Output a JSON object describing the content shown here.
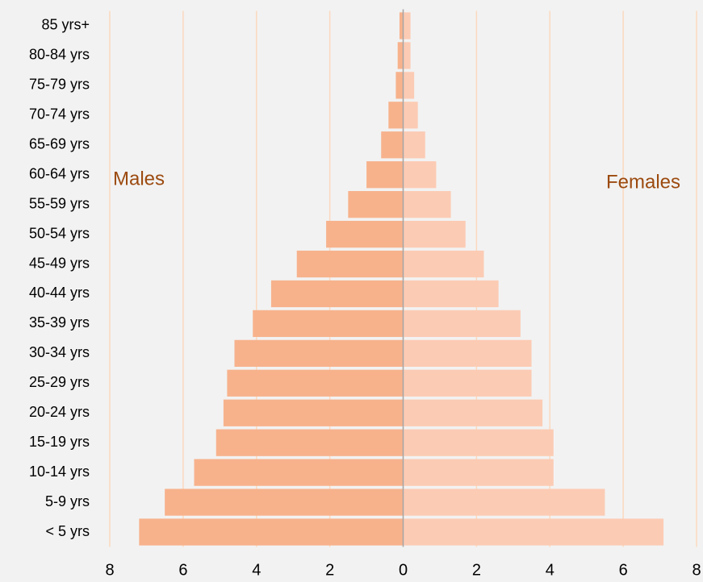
{
  "chart_data": {
    "type": "pyramid",
    "categories": [
      "< 5 yrs",
      "5-9 yrs",
      "10-14 yrs",
      "15-19 yrs",
      "20-24 yrs",
      "25-29 yrs",
      "30-34 yrs",
      "35-39 yrs",
      "40-44 yrs",
      "45-49 yrs",
      "50-54 yrs",
      "55-59 yrs",
      "60-64 yrs",
      "65-69 yrs",
      "70-74 yrs",
      "75-79 yrs",
      "80-84 yrs",
      "85 yrs+"
    ],
    "series": [
      {
        "name": "Males",
        "color": "#f7b28c",
        "values": [
          -7.2,
          -6.5,
          -5.7,
          -5.1,
          -4.9,
          -4.8,
          -4.6,
          -4.1,
          -3.6,
          -2.9,
          -2.1,
          -1.5,
          -1.0,
          -0.6,
          -0.4,
          -0.2,
          -0.15,
          -0.1
        ]
      },
      {
        "name": "Females",
        "color": "#fccbb4",
        "values": [
          7.1,
          5.5,
          4.1,
          4.1,
          3.8,
          3.5,
          3.5,
          3.2,
          2.6,
          2.2,
          1.7,
          1.3,
          0.9,
          0.6,
          0.4,
          0.3,
          0.2,
          0.2
        ]
      }
    ],
    "xlim": [
      -8,
      8
    ],
    "xticks": [
      {
        "value": -8,
        "label": "8"
      },
      {
        "value": -6,
        "label": "6"
      },
      {
        "value": -4,
        "label": "4"
      },
      {
        "value": -2,
        "label": "2"
      },
      0,
      2,
      4,
      6,
      8
    ],
    "grid": true,
    "grid_color": "#fbd9bf"
  }
}
